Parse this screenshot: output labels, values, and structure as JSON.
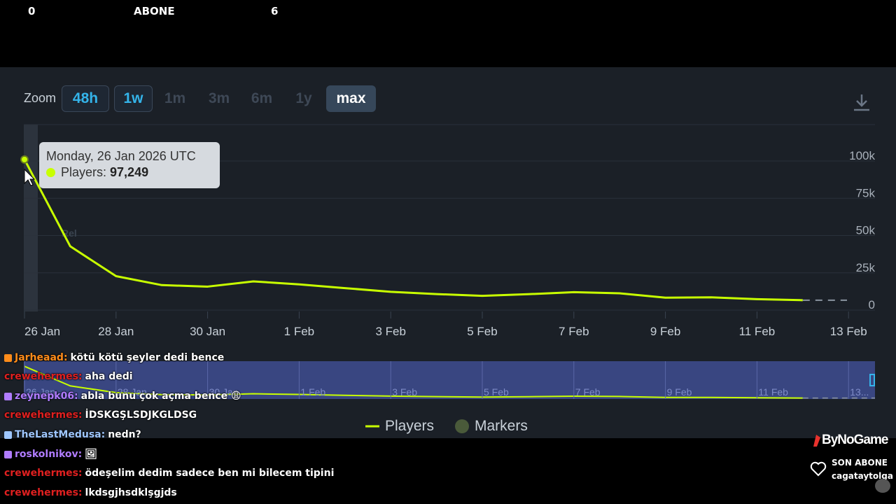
{
  "overlay": {
    "left_count": "0",
    "label": "ABONE",
    "right_count": "6"
  },
  "zoom": {
    "label": "Zoom",
    "buttons": [
      "48h",
      "1w",
      "1m",
      "3m",
      "6m",
      "1y",
      "max"
    ],
    "selected": "max"
  },
  "tooltip": {
    "date": "Monday, 26 Jan 2026 UTC",
    "series_label": "Players:",
    "value": "97,249"
  },
  "chart_data": {
    "type": "line",
    "x": [
      "26 Jan",
      "27 Jan",
      "28 Jan",
      "29 Jan",
      "30 Jan",
      "31 Jan",
      "1 Feb",
      "2 Feb",
      "3 Feb",
      "4 Feb",
      "5 Feb",
      "6 Feb",
      "7 Feb",
      "8 Feb",
      "9 Feb",
      "10 Feb",
      "11 Feb",
      "12 Feb"
    ],
    "series": [
      {
        "name": "Players",
        "color": "#c8ff00",
        "values": [
          97249,
          39000,
          19000,
          13000,
          12000,
          15500,
          13500,
          11000,
          8500,
          7000,
          5800,
          6900,
          8300,
          7500,
          4600,
          4800,
          3600,
          2900
        ]
      }
    ],
    "x_ticks": [
      "26 Jan",
      "28 Jan",
      "30 Jan",
      "1 Feb",
      "3 Feb",
      "5 Feb",
      "7 Feb",
      "9 Feb",
      "11 Feb",
      "13 Feb"
    ],
    "y_ticks": [
      "0",
      "25k",
      "50k",
      "75k",
      "100k"
    ],
    "ylim": [
      0,
      100000
    ],
    "legend": [
      "Players",
      "Markers"
    ],
    "legend_position": "bottom",
    "navigator_labels": [
      "26 Jan",
      "28 Jan",
      "30 Jan",
      "1 Feb",
      "3 Feb",
      "5 Feb",
      "7 Feb",
      "9 Feb",
      "11 Feb",
      "13..."
    ],
    "faded_label": "Rel"
  },
  "chat": [
    {
      "user": "Jarheaad:",
      "color": "#ff8c1a",
      "msg": "kötü kötü şeyler dedi bence"
    },
    {
      "user": "crewehermes:",
      "color": "#e02020",
      "msg": "aha dedi"
    },
    {
      "user": "zeynepk06:",
      "color": "#b07cff",
      "msg": "abla bunu çok açma bence 😩"
    },
    {
      "user": "crewehermes:",
      "color": "#e02020",
      "msg": "İDSKGŞLSDJKGLDSG"
    },
    {
      "user": "TheLastMedusa:",
      "color": "#9fc7ff",
      "msg": "nedn?"
    },
    {
      "user": "roskolnikov:",
      "color": "#b07cff",
      "msg": "🖼"
    },
    {
      "user": "crewehermes:",
      "color": "#e02020",
      "msg": "ödeşelim dedim sadece ben mi bilecem tipini"
    },
    {
      "user": "crewehermes:",
      "color": "#e02020",
      "msg": "lkdsgjhsdklşgjds"
    }
  ],
  "branding": {
    "name": "ByNoGame",
    "last_sub_title": "SON ABONE",
    "last_sub_name": "cagataytolga"
  }
}
